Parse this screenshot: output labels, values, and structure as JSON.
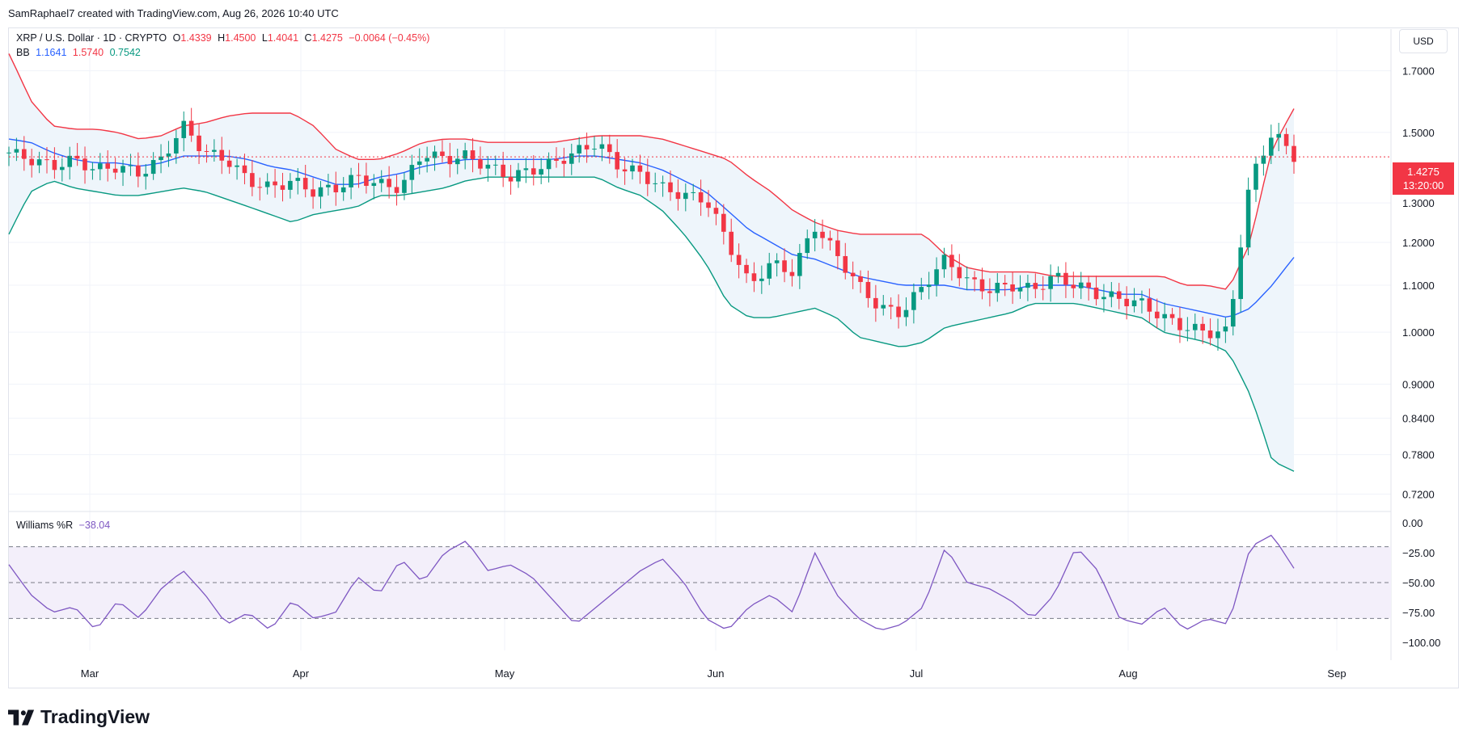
{
  "header": {
    "attribution": "SamRaphael7 created with TradingView.com, Aug 26, 2026 10:40 UTC"
  },
  "legend": {
    "symbol": "XRP / U.S. Dollar · 1D · CRYPTO",
    "open_label": "O",
    "open": "1.4339",
    "high_label": "H",
    "high": "1.4500",
    "low_label": "L",
    "low": "1.4041",
    "close_label": "C",
    "close": "1.4275",
    "change": "−0.0064 (−0.45%)",
    "bb_label": "BB",
    "bb_middle": "1.1641",
    "bb_upper": "1.5740",
    "bb_lower": "0.7542",
    "wr_label": "Williams %R",
    "wr_value": "−38.04"
  },
  "toolbar": {
    "currency": "USD"
  },
  "price_tag": {
    "price": "1.4275",
    "countdown": "13:20:00"
  },
  "brand": {
    "name": "TradingView"
  },
  "colors": {
    "up": "#089981",
    "down": "#f23645",
    "bb_mid": "#2962ff",
    "bb_upper": "#f23645",
    "bb_lower": "#089981",
    "wr_line": "#7e57c2",
    "band_fill": "#eef5fb",
    "wr_fill": "#f3effa"
  },
  "chart_data": [
    {
      "type": "candlestick",
      "title": "XRP / U.S. Dollar · 1D · CRYPTO",
      "scale": "log",
      "y_ticks": [
        "1.7000",
        "1.5000",
        "1.3000",
        "1.2000",
        "1.1000",
        "1.0000",
        "0.9000",
        "0.8400",
        "0.7800",
        "0.7200"
      ],
      "x_ticks": [
        "Mar",
        "Apr",
        "May",
        "Jun",
        "Jul",
        "Aug",
        "Sep"
      ],
      "ylim": [
        0.695,
        1.82
      ],
      "grid": true,
      "last_close": 1.4275,
      "close_series_weekly": [
        1.44,
        1.42,
        1.4,
        1.42,
        1.39,
        1.4,
        1.38,
        1.42,
        1.52,
        1.44,
        1.42,
        1.36,
        1.34,
        1.36,
        1.33,
        1.34,
        1.37,
        1.35,
        1.34,
        1.44,
        1.42,
        1.43,
        1.4,
        1.37,
        1.39,
        1.41,
        1.44,
        1.47,
        1.4,
        1.38,
        1.34,
        1.32,
        1.31,
        1.2,
        1.1,
        1.15,
        1.13,
        1.24,
        1.17,
        1.1,
        1.05,
        1.04,
        1.1,
        1.16,
        1.11,
        1.09,
        1.1,
        1.09,
        1.12,
        1.1,
        1.08,
        1.07,
        1.06,
        1.03,
        1.01,
        1.0,
        1.0,
        1.36,
        1.5,
        1.43
      ],
      "bb_upper_weekly": [
        1.76,
        1.6,
        1.52,
        1.51,
        1.51,
        1.5,
        1.48,
        1.49,
        1.52,
        1.53,
        1.55,
        1.56,
        1.56,
        1.56,
        1.52,
        1.45,
        1.42,
        1.42,
        1.44,
        1.47,
        1.48,
        1.48,
        1.47,
        1.47,
        1.47,
        1.47,
        1.48,
        1.49,
        1.49,
        1.49,
        1.48,
        1.46,
        1.44,
        1.42,
        1.37,
        1.33,
        1.28,
        1.25,
        1.23,
        1.22,
        1.22,
        1.22,
        1.22,
        1.17,
        1.14,
        1.13,
        1.13,
        1.13,
        1.12,
        1.12,
        1.12,
        1.12,
        1.12,
        1.12,
        1.1,
        1.1,
        1.09,
        1.2,
        1.45,
        1.574
      ],
      "bb_mid_weekly": [
        1.48,
        1.47,
        1.44,
        1.42,
        1.41,
        1.41,
        1.4,
        1.41,
        1.43,
        1.43,
        1.43,
        1.42,
        1.4,
        1.39,
        1.37,
        1.35,
        1.35,
        1.37,
        1.38,
        1.4,
        1.41,
        1.42,
        1.42,
        1.42,
        1.42,
        1.42,
        1.43,
        1.43,
        1.42,
        1.41,
        1.39,
        1.36,
        1.33,
        1.28,
        1.23,
        1.2,
        1.17,
        1.16,
        1.14,
        1.12,
        1.11,
        1.1,
        1.1,
        1.1,
        1.09,
        1.09,
        1.09,
        1.1,
        1.1,
        1.1,
        1.09,
        1.08,
        1.08,
        1.06,
        1.05,
        1.04,
        1.03,
        1.05,
        1.1,
        1.1641
      ],
      "bb_lower_weekly": [
        1.22,
        1.33,
        1.36,
        1.34,
        1.33,
        1.32,
        1.32,
        1.33,
        1.34,
        1.33,
        1.31,
        1.29,
        1.27,
        1.25,
        1.27,
        1.28,
        1.29,
        1.32,
        1.32,
        1.33,
        1.34,
        1.36,
        1.37,
        1.37,
        1.37,
        1.37,
        1.37,
        1.37,
        1.34,
        1.32,
        1.28,
        1.22,
        1.15,
        1.06,
        1.03,
        1.03,
        1.04,
        1.05,
        1.03,
        0.99,
        0.98,
        0.97,
        0.98,
        1.01,
        1.02,
        1.03,
        1.04,
        1.06,
        1.06,
        1.06,
        1.05,
        1.04,
        1.03,
        1.0,
        0.99,
        0.98,
        0.96,
        0.88,
        0.77,
        0.7542
      ]
    },
    {
      "type": "line",
      "title": "Williams %R",
      "y_ticks": [
        "0.00",
        "−25.00",
        "−50.00",
        "−75.00",
        "−100.00"
      ],
      "ylim": [
        -100,
        0
      ],
      "bands": [
        -20,
        -50,
        -80
      ],
      "last_value": -38.04,
      "values_weekly": [
        -35,
        -60,
        -75,
        -70,
        -90,
        -65,
        -80,
        -55,
        -40,
        -60,
        -85,
        -75,
        -90,
        -65,
        -80,
        -75,
        -45,
        -60,
        -30,
        -50,
        -25,
        -15,
        -40,
        -35,
        -45,
        -65,
        -85,
        -70,
        -55,
        -40,
        -30,
        -50,
        -80,
        -90,
        -70,
        -60,
        -75,
        -25,
        -60,
        -80,
        -90,
        -85,
        -70,
        -20,
        -50,
        -55,
        -65,
        -80,
        -60,
        -20,
        -40,
        -80,
        -85,
        -70,
        -90,
        -80,
        -85,
        -20,
        -10,
        -38.04
      ]
    }
  ]
}
